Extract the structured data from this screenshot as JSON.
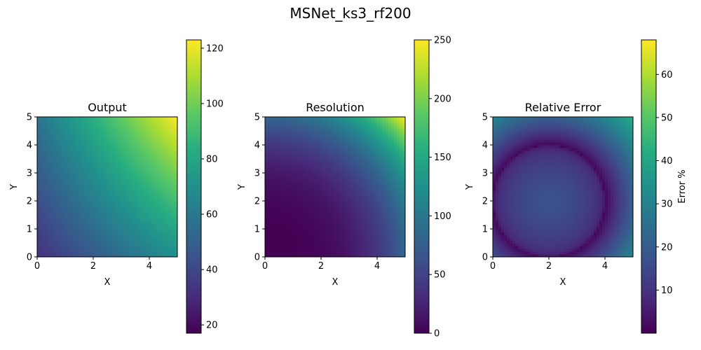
{
  "figure": {
    "suptitle": "MSNet_ks3_rf200"
  },
  "chart_data": [
    {
      "type": "heatmap",
      "title": "Output",
      "xlabel": "X",
      "ylabel": "Y",
      "xlim": [
        0,
        5
      ],
      "ylim": [
        0,
        5
      ],
      "x_ticks": [
        0,
        2,
        4
      ],
      "y_ticks": [
        0,
        1,
        2,
        3,
        4,
        5
      ],
      "colormap": "viridis",
      "colorbar": {
        "label": "",
        "range": [
          17,
          123
        ],
        "ticks": [
          20,
          40,
          60,
          80,
          100,
          120
        ]
      },
      "corner_values": {
        "x0_y0": 32,
        "x5_y0": 70,
        "x0_y5": 58,
        "x5_y5": 123
      }
    },
    {
      "type": "heatmap",
      "title": "Resolution",
      "xlabel": "X",
      "ylabel": "Y",
      "xlim": [
        0,
        5
      ],
      "ylim": [
        0,
        5
      ],
      "x_ticks": [
        0,
        2,
        4
      ],
      "y_ticks": [
        0,
        1,
        2,
        3,
        4,
        5
      ],
      "colormap": "viridis",
      "colorbar": {
        "label": "",
        "range": [
          0,
          250
        ],
        "ticks": [
          0,
          50,
          100,
          150,
          200,
          250
        ]
      },
      "corner_values": {
        "x0_y0": 0,
        "x5_y0": 85,
        "x0_y5": 85,
        "x5_y5": 250
      }
    },
    {
      "type": "heatmap",
      "title": "Relative Error",
      "xlabel": "X",
      "ylabel": "Y",
      "xlim": [
        0,
        5
      ],
      "ylim": [
        0,
        5
      ],
      "x_ticks": [
        0,
        2,
        4
      ],
      "y_ticks": [
        0,
        1,
        2,
        3,
        4,
        5
      ],
      "colormap": "viridis",
      "colorbar": {
        "label": "Error %",
        "range": [
          0,
          68
        ],
        "ticks": [
          10,
          20,
          30,
          40,
          50,
          60
        ]
      },
      "ring": {
        "center": [
          2,
          2
        ],
        "radius": 2,
        "min_value": 1
      },
      "inside_value": 18,
      "outer_corner_value": 42
    }
  ]
}
